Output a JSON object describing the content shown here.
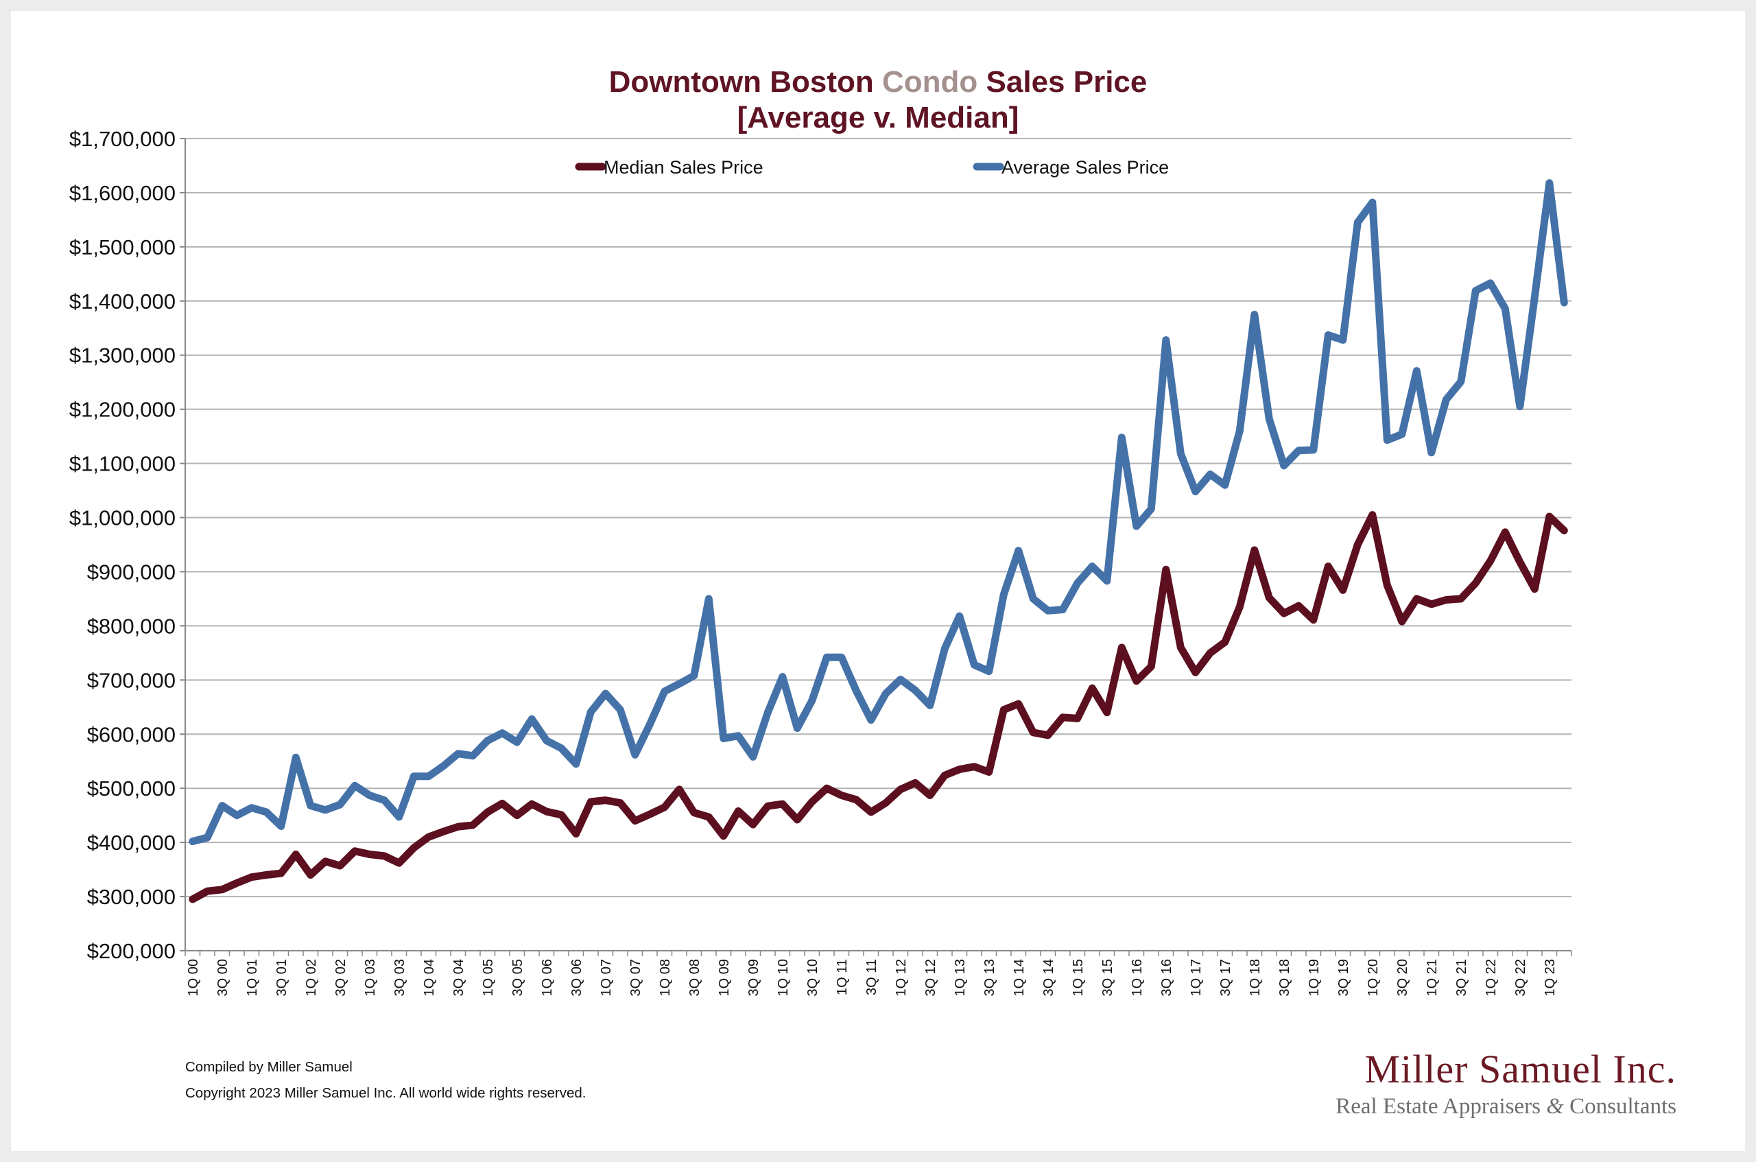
{
  "title": {
    "part1": "Downtown Boston ",
    "part2": "Condo",
    "part3": " Sales Price",
    "line2": "[Average v. Median]"
  },
  "footer": {
    "compiled": "Compiled by Miller Samuel",
    "copyright": "Copyright 2023 Miller Samuel Inc.  All world wide rights reserved."
  },
  "logo": {
    "name": "Miller Samuel Inc.",
    "tagline_part1": "Real Estate Appraisers ",
    "tagline_amp": "&",
    "tagline_part2": " Consultants"
  },
  "chart_data": {
    "type": "line",
    "title": "Downtown Boston Condo Sales Price [Average v. Median]",
    "ylim": [
      200000,
      1700000
    ],
    "yticks": [
      200000,
      300000,
      400000,
      500000,
      600000,
      700000,
      800000,
      900000,
      1000000,
      1100000,
      1200000,
      1300000,
      1400000,
      1500000,
      1600000,
      1700000
    ],
    "ytick_labels": [
      "$200,000",
      "$300,000",
      "$400,000",
      "$500,000",
      "$600,000",
      "$700,000",
      "$800,000",
      "$900,000",
      "$1,000,000",
      "$1,100,000",
      "$1,200,000",
      "$1,300,000",
      "$1,400,000",
      "$1,500,000",
      "$1,600,000",
      "$1,700,000"
    ],
    "grid": true,
    "legend_position": "top-center",
    "x": [
      "1Q 00",
      "2Q 00",
      "3Q 00",
      "4Q 00",
      "1Q 01",
      "2Q 01",
      "3Q 01",
      "4Q 01",
      "1Q 02",
      "2Q 02",
      "3Q 02",
      "4Q 02",
      "1Q 03",
      "2Q 03",
      "3Q 03",
      "4Q 03",
      "1Q 04",
      "2Q 04",
      "3Q 04",
      "4Q 04",
      "1Q 05",
      "2Q 05",
      "3Q 05",
      "4Q 05",
      "1Q 06",
      "2Q 06",
      "3Q 06",
      "4Q 06",
      "1Q 07",
      "2Q 07",
      "3Q 07",
      "4Q 07",
      "1Q 08",
      "2Q 08",
      "3Q 08",
      "4Q 08",
      "1Q 09",
      "2Q 09",
      "3Q 09",
      "4Q 09",
      "1Q 10",
      "2Q 10",
      "3Q 10",
      "4Q 10",
      "1Q 11",
      "2Q 11",
      "3Q 11",
      "4Q 11",
      "1Q 12",
      "2Q 12",
      "3Q 12",
      "4Q 12",
      "1Q 13",
      "2Q 13",
      "3Q 13",
      "4Q 13",
      "1Q 14",
      "2Q 14",
      "3Q 14",
      "4Q 14",
      "1Q 15",
      "2Q 15",
      "3Q 15",
      "4Q 15",
      "1Q 16",
      "2Q 16",
      "3Q 16",
      "4Q 16",
      "1Q 17",
      "2Q 17",
      "3Q 17",
      "4Q 17",
      "1Q 18",
      "2Q 18",
      "3Q 18",
      "4Q 18",
      "1Q 19",
      "2Q 19",
      "3Q 19",
      "4Q 19",
      "1Q 20",
      "2Q 20",
      "3Q 20",
      "4Q 20",
      "1Q 21",
      "2Q 21",
      "3Q 21",
      "4Q 21",
      "1Q 22",
      "2Q 22",
      "3Q 22",
      "4Q 22",
      "1Q 23",
      "2Q 23"
    ],
    "x_tick_labels_shown": [
      "1Q 00",
      "3Q 00",
      "1Q 01",
      "3Q 01",
      "1Q 02",
      "3Q 02",
      "1Q 03",
      "3Q 03",
      "1Q 04",
      "3Q 04",
      "1Q 05",
      "3Q 05",
      "1Q 06",
      "3Q 06",
      "1Q 07",
      "3Q 07",
      "1Q 08",
      "3Q 08",
      "1Q 09",
      "3Q 09",
      "1Q 10",
      "3Q 10",
      "1Q 11",
      "3Q 11",
      "1Q 12",
      "3Q 12",
      "1Q 13",
      "3Q 13",
      "1Q 14",
      "3Q 14",
      "1Q 15",
      "3Q 15",
      "1Q 16",
      "3Q 16",
      "1Q 17",
      "3Q 17",
      "1Q 18",
      "3Q 18",
      "1Q 19",
      "3Q 19",
      "1Q 20",
      "3Q 20",
      "1Q 21",
      "3Q 21",
      "1Q 22",
      "3Q 22",
      "1Q 23"
    ],
    "series": [
      {
        "name": "Median Sales Price",
        "color": "#5c0f1f",
        "values": [
          295000,
          310000,
          313000,
          325000,
          336000,
          340000,
          343000,
          378000,
          340000,
          365000,
          357000,
          384000,
          378000,
          375000,
          362000,
          390000,
          410000,
          420000,
          429000,
          432000,
          456000,
          472000,
          450000,
          471000,
          457000,
          451000,
          416000,
          475000,
          478000,
          473000,
          440000,
          452000,
          465000,
          498000,
          455000,
          447000,
          412000,
          458000,
          433000,
          467000,
          471000,
          442000,
          475000,
          500000,
          487000,
          479000,
          456000,
          473000,
          498000,
          510000,
          487000,
          524000,
          535000,
          540000,
          530000,
          645000,
          656000,
          603000,
          598000,
          631000,
          629000,
          685000,
          640000,
          760000,
          698000,
          725000,
          904000,
          760000,
          714000,
          750000,
          770000,
          835000,
          940000,
          852000,
          823000,
          837000,
          811000,
          910000,
          866000,
          950000,
          1005000,
          875000,
          808000,
          850000,
          840000,
          848000,
          850000,
          879000,
          920000,
          973000,
          918000,
          868000,
          1002000,
          976000
        ]
      },
      {
        "name": "Average Sales Price",
        "color": "#4472a8",
        "values": [
          402000,
          409000,
          468000,
          450000,
          464000,
          456000,
          430000,
          557000,
          468000,
          460000,
          470000,
          505000,
          487000,
          478000,
          447000,
          522000,
          522000,
          541000,
          564000,
          560000,
          588000,
          602000,
          585000,
          628000,
          588000,
          574000,
          545000,
          641000,
          675000,
          645000,
          562000,
          618000,
          679000,
          693000,
          708000,
          850000,
          592000,
          597000,
          558000,
          640000,
          706000,
          611000,
          662000,
          742000,
          742000,
          680000,
          626000,
          675000,
          701000,
          681000,
          653000,
          758000,
          818000,
          728000,
          716000,
          858000,
          939000,
          850000,
          828000,
          830000,
          879000,
          910000,
          883000,
          1148000,
          984000,
          1016000,
          1328000,
          1118000,
          1048000,
          1080000,
          1060000,
          1160000,
          1375000,
          1182000,
          1096000,
          1124000,
          1125000,
          1337000,
          1328000,
          1545000,
          1582000,
          1143000,
          1154000,
          1271000,
          1120000,
          1218000,
          1251000,
          1419000,
          1433000,
          1386000,
          1205000,
          1407000,
          1618000,
          1397000
        ]
      }
    ]
  }
}
